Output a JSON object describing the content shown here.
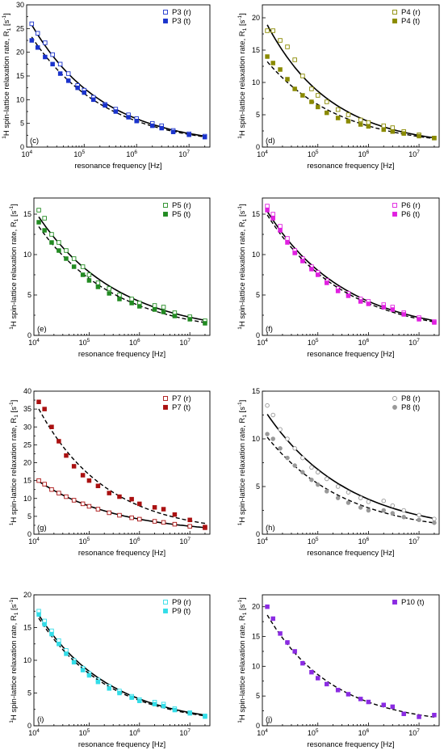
{
  "chart_data": [
    {
      "type": "scatter",
      "panel_label": "(c)",
      "xlabel": "resonance frequency [Hz]",
      "ylabel": "1H spin-lattice relaxation rate, R1 [s-1]",
      "x_scale": "log",
      "xlim": [
        8000,
        25000000
      ],
      "ylim": [
        0,
        30
      ],
      "x_ticks": [
        "10^4",
        "10^5",
        "10^6",
        "10^7"
      ],
      "y_ticks": [
        0,
        5,
        10,
        15,
        20,
        25,
        30
      ],
      "legend_position": "top-right",
      "color": "#1a33cc",
      "series": [
        {
          "name": "P3 (r)",
          "marker": "open-square",
          "curve": "solid",
          "x": [
            10000,
            13000,
            18000,
            25000,
            35000,
            50000,
            75000,
            100000,
            150000,
            250000,
            400000,
            700000,
            1000000,
            2000000,
            3000000,
            5000000,
            10000000,
            20000000
          ],
          "y": [
            26.0,
            24.0,
            22.0,
            19.5,
            17.5,
            15.5,
            13.0,
            12.0,
            10.5,
            9.0,
            8.0,
            6.8,
            6.0,
            5.0,
            4.5,
            3.5,
            2.8,
            2.3
          ]
        },
        {
          "name": "P3 (t)",
          "marker": "filled-square",
          "curve": "dashed",
          "x": [
            10000,
            13000,
            18000,
            25000,
            35000,
            50000,
            75000,
            100000,
            150000,
            250000,
            400000,
            700000,
            1000000,
            2000000,
            3000000,
            5000000,
            10000000,
            20000000
          ],
          "y": [
            22.5,
            21.0,
            19.0,
            17.5,
            15.5,
            14.0,
            12.5,
            11.5,
            10.0,
            8.8,
            7.5,
            6.3,
            5.5,
            4.5,
            4.0,
            3.2,
            2.6,
            2.1
          ]
        }
      ]
    },
    {
      "type": "scatter",
      "panel_label": "(d)",
      "xlabel": "resonance frequency [Hz]",
      "ylabel": "1H spin-lattice relaxation rate, R1 [s-1]",
      "x_scale": "log",
      "xlim": [
        8000,
        25000000
      ],
      "ylim": [
        0,
        22
      ],
      "x_ticks": [
        "10^4",
        "10^5",
        "10^6",
        "10^7"
      ],
      "y_ticks": [
        0,
        5,
        10,
        15,
        20
      ],
      "legend_position": "top-right",
      "color": "#8a8a00",
      "series": [
        {
          "name": "P4 (r)",
          "marker": "open-square",
          "curve": "solid",
          "x": [
            10000,
            13000,
            18000,
            25000,
            35000,
            50000,
            75000,
            100000,
            150000,
            250000,
            400000,
            700000,
            1000000,
            2000000,
            3000000,
            5000000,
            10000000,
            20000000
          ],
          "y": [
            18.0,
            18.0,
            16.5,
            15.5,
            13.5,
            11.0,
            9.0,
            8.0,
            7.0,
            5.8,
            5.0,
            4.2,
            3.8,
            3.3,
            3.0,
            2.4,
            1.9,
            1.4
          ]
        },
        {
          "name": "P4 (t)",
          "marker": "filled-square",
          "curve": "dashed",
          "x": [
            10000,
            13000,
            18000,
            25000,
            35000,
            50000,
            75000,
            100000,
            150000,
            250000,
            400000,
            700000,
            1000000,
            2000000,
            3000000,
            5000000,
            10000000,
            20000000
          ],
          "y": [
            14.0,
            13.0,
            12.0,
            10.5,
            9.0,
            8.0,
            7.0,
            6.2,
            5.3,
            4.5,
            4.0,
            3.5,
            3.2,
            2.7,
            2.4,
            2.1,
            1.7,
            1.4
          ]
        }
      ]
    },
    {
      "type": "scatter",
      "panel_label": "(e)",
      "xlabel": "resonance frequency [Hz]",
      "ylabel": "1H spin-lattice relaxation rate, R1 [s-1]",
      "x_scale": "log",
      "xlim": [
        8000,
        25000000
      ],
      "ylim": [
        0,
        17
      ],
      "x_ticks": [
        "10^4",
        "10^5",
        "10^6",
        "10^7"
      ],
      "y_ticks": [
        0,
        5,
        10,
        15
      ],
      "legend_position": "top-right",
      "color": "#228b22",
      "series": [
        {
          "name": "P5 (r)",
          "marker": "open-square",
          "curve": "solid",
          "x": [
            10000,
            13000,
            18000,
            25000,
            35000,
            50000,
            75000,
            100000,
            150000,
            250000,
            400000,
            700000,
            1000000,
            2000000,
            3000000,
            5000000,
            10000000,
            20000000
          ],
          "y": [
            15.5,
            14.5,
            12.5,
            11.5,
            10.5,
            9.5,
            8.5,
            7.5,
            6.5,
            5.8,
            5.0,
            4.5,
            4.0,
            3.7,
            3.5,
            2.8,
            2.3,
            1.8
          ]
        },
        {
          "name": "P5 (t)",
          "marker": "filled-square",
          "curve": "dashed",
          "x": [
            10000,
            13000,
            18000,
            25000,
            35000,
            50000,
            75000,
            100000,
            150000,
            250000,
            400000,
            700000,
            1000000,
            2000000,
            3000000,
            5000000,
            10000000,
            20000000
          ],
          "y": [
            14.0,
            13.0,
            11.5,
            10.5,
            9.5,
            8.5,
            7.5,
            6.8,
            6.0,
            5.2,
            4.5,
            4.0,
            3.6,
            3.2,
            2.9,
            2.4,
            2.0,
            1.5
          ]
        }
      ]
    },
    {
      "type": "scatter",
      "panel_label": "(f)",
      "xlabel": "resonance frequency [Hz]",
      "ylabel": "1H spin-lattice relaxation rate, R1 [s-1]",
      "x_scale": "log",
      "xlim": [
        8000,
        25000000
      ],
      "ylim": [
        0,
        17
      ],
      "x_ticks": [
        "10^4",
        "10^5",
        "10^6",
        "10^7"
      ],
      "y_ticks": [
        0,
        5,
        10,
        15
      ],
      "legend_position": "top-right",
      "color": "#e020e0",
      "series": [
        {
          "name": "P6 (r)",
          "marker": "open-square",
          "curve": "solid",
          "x": [
            10000,
            13000,
            18000,
            25000,
            35000,
            50000,
            75000,
            100000,
            150000,
            250000,
            400000,
            700000,
            1000000,
            2000000,
            3000000,
            5000000,
            10000000,
            20000000
          ],
          "y": [
            16.0,
            15.0,
            13.5,
            12.0,
            10.5,
            9.5,
            8.5,
            7.8,
            6.8,
            5.8,
            5.2,
            4.5,
            4.2,
            3.8,
            3.5,
            2.8,
            2.2,
            1.7
          ]
        },
        {
          "name": "P6 (t)",
          "marker": "filled-square",
          "curve": "dashed",
          "x": [
            10000,
            13000,
            18000,
            25000,
            35000,
            50000,
            75000,
            100000,
            150000,
            250000,
            400000,
            700000,
            1000000,
            2000000,
            3000000,
            5000000,
            10000000,
            20000000
          ],
          "y": [
            15.5,
            14.5,
            13.0,
            11.5,
            10.2,
            9.2,
            8.2,
            7.5,
            6.5,
            5.5,
            4.9,
            4.2,
            3.9,
            3.5,
            3.2,
            2.6,
            2.0,
            1.6
          ]
        }
      ]
    },
    {
      "type": "scatter",
      "panel_label": "(g)",
      "xlabel": "resonance frequency [Hz]",
      "ylabel": "1H spin-lattice relaxation rate, R1 [s-1]",
      "x_scale": "log",
      "xlim": [
        8000,
        25000000
      ],
      "ylim": [
        0,
        40
      ],
      "x_ticks": [
        "10^4",
        "10^5",
        "10^6",
        "10^7"
      ],
      "y_ticks": [
        0,
        5,
        10,
        15,
        20,
        25,
        30,
        35,
        40
      ],
      "legend_position": "top-right",
      "color": "#aa1111",
      "series": [
        {
          "name": "P7 (r)",
          "marker": "open-square",
          "curve": "solid",
          "x": [
            10000,
            13000,
            18000,
            25000,
            35000,
            50000,
            75000,
            100000,
            150000,
            250000,
            400000,
            700000,
            1000000,
            2000000,
            3000000,
            5000000,
            10000000,
            20000000
          ],
          "y": [
            15.0,
            14.0,
            12.5,
            11.5,
            10.5,
            9.5,
            8.5,
            7.8,
            7.0,
            6.0,
            5.3,
            4.6,
            4.2,
            3.6,
            3.3,
            2.8,
            2.2,
            1.8
          ]
        },
        {
          "name": "P7 (t)",
          "marker": "filled-square",
          "curve": "dashed",
          "x": [
            10000,
            13000,
            18000,
            25000,
            35000,
            50000,
            75000,
            100000,
            150000,
            250000,
            400000,
            700000,
            1000000,
            2000000,
            3000000,
            5000000,
            10000000,
            20000000
          ],
          "y": [
            37.0,
            35.0,
            30.0,
            26.0,
            22.0,
            19.0,
            16.5,
            15.0,
            13.5,
            11.5,
            10.5,
            9.8,
            8.5,
            7.5,
            7.0,
            5.5,
            4.0,
            2.0
          ]
        }
      ]
    },
    {
      "type": "scatter",
      "panel_label": "(h)",
      "xlabel": "resonance frequency [Hz]",
      "ylabel": "1H spin-lattice relaxation rate, R1 [s-1]",
      "x_scale": "log",
      "xlim": [
        8000,
        25000000
      ],
      "ylim": [
        0,
        15
      ],
      "x_ticks": [
        "10^4",
        "10^5",
        "10^6",
        "10^7"
      ],
      "y_ticks": [
        0,
        5,
        10,
        15
      ],
      "legend_position": "top-right",
      "color": "#999999",
      "series": [
        {
          "name": "P8 (r)",
          "marker": "open-circle",
          "curve": "solid",
          "x": [
            10000,
            13000,
            18000,
            25000,
            35000,
            50000,
            75000,
            100000,
            150000,
            250000,
            400000,
            700000,
            1000000,
            2000000,
            3000000,
            5000000,
            10000000,
            20000000
          ],
          "y": [
            13.5,
            12.5,
            11.0,
            10.0,
            9.0,
            8.0,
            7.0,
            6.5,
            5.8,
            5.0,
            4.4,
            3.8,
            3.4,
            3.5,
            3.0,
            2.5,
            2.0,
            1.6
          ]
        },
        {
          "name": "P8 (t)",
          "marker": "filled-circle",
          "curve": "dashed",
          "x": [
            10000,
            13000,
            18000,
            25000,
            35000,
            50000,
            75000,
            100000,
            150000,
            250000,
            400000,
            700000,
            1000000,
            2000000,
            3000000,
            5000000,
            10000000,
            20000000
          ],
          "y": [
            10.5,
            10.0,
            9.0,
            8.0,
            7.2,
            6.5,
            5.7,
            5.2,
            4.5,
            3.8,
            3.3,
            2.8,
            2.5,
            2.5,
            2.2,
            1.8,
            1.5,
            1.2
          ]
        }
      ]
    },
    {
      "type": "scatter",
      "panel_label": "(i)",
      "xlabel": "resonance frequency [Hz]",
      "ylabel": "1H spin-lattice relaxation rate, R1 [s-1]",
      "x_scale": "log",
      "xlim": [
        8000,
        25000000
      ],
      "ylim": [
        0,
        20
      ],
      "x_ticks": [
        "10^4",
        "10^5",
        "10^6",
        "10^7"
      ],
      "y_ticks": [
        0,
        5,
        10,
        15,
        20
      ],
      "legend_position": "top-right",
      "color": "#33dde8",
      "series": [
        {
          "name": "P9 (r)",
          "marker": "open-square",
          "curve": "solid",
          "x": [
            10000,
            13000,
            18000,
            25000,
            35000,
            50000,
            75000,
            100000,
            150000,
            250000,
            400000,
            700000,
            1000000,
            2000000,
            3000000,
            5000000,
            10000000,
            20000000
          ],
          "y": [
            17.5,
            16.0,
            14.5,
            13.0,
            11.5,
            10.0,
            8.8,
            8.0,
            7.0,
            6.0,
            5.3,
            4.5,
            4.0,
            3.6,
            3.3,
            2.6,
            2.0,
            1.5
          ]
        },
        {
          "name": "P9 (t)",
          "marker": "filled-square",
          "curve": "dashed",
          "x": [
            10000,
            13000,
            18000,
            25000,
            35000,
            50000,
            75000,
            100000,
            150000,
            250000,
            400000,
            700000,
            1000000,
            2000000,
            3000000,
            5000000,
            10000000,
            20000000
          ],
          "y": [
            17.0,
            15.5,
            14.0,
            12.5,
            11.0,
            9.7,
            8.5,
            7.7,
            6.7,
            5.7,
            5.0,
            4.3,
            3.8,
            3.3,
            3.0,
            2.4,
            1.9,
            1.4
          ]
        }
      ]
    },
    {
      "type": "scatter",
      "panel_label": "(j)",
      "xlabel": "resonance frequency [Hz]",
      "ylabel": "1H spin-lattice relaxation rate, R1 [s-1]",
      "x_scale": "log",
      "xlim": [
        8000,
        25000000
      ],
      "ylim": [
        0,
        22
      ],
      "x_ticks": [
        "10^4",
        "10^5",
        "10^6",
        "10^7"
      ],
      "y_ticks": [
        0,
        5,
        10,
        15,
        20
      ],
      "legend_position": "top-right",
      "color": "#8a2be2",
      "series": [
        {
          "name": "P10 (t)",
          "marker": "filled-square",
          "curve": "dashed",
          "x": [
            10000,
            13000,
            18000,
            25000,
            35000,
            50000,
            75000,
            100000,
            150000,
            250000,
            400000,
            700000,
            1000000,
            2000000,
            3000000,
            5000000,
            10000000,
            20000000
          ],
          "y": [
            20.0,
            18.0,
            15.5,
            14.0,
            12.5,
            10.5,
            9.0,
            8.0,
            7.0,
            6.0,
            5.3,
            4.5,
            4.0,
            3.5,
            3.2,
            2.0,
            1.5,
            1.8
          ]
        }
      ]
    }
  ]
}
